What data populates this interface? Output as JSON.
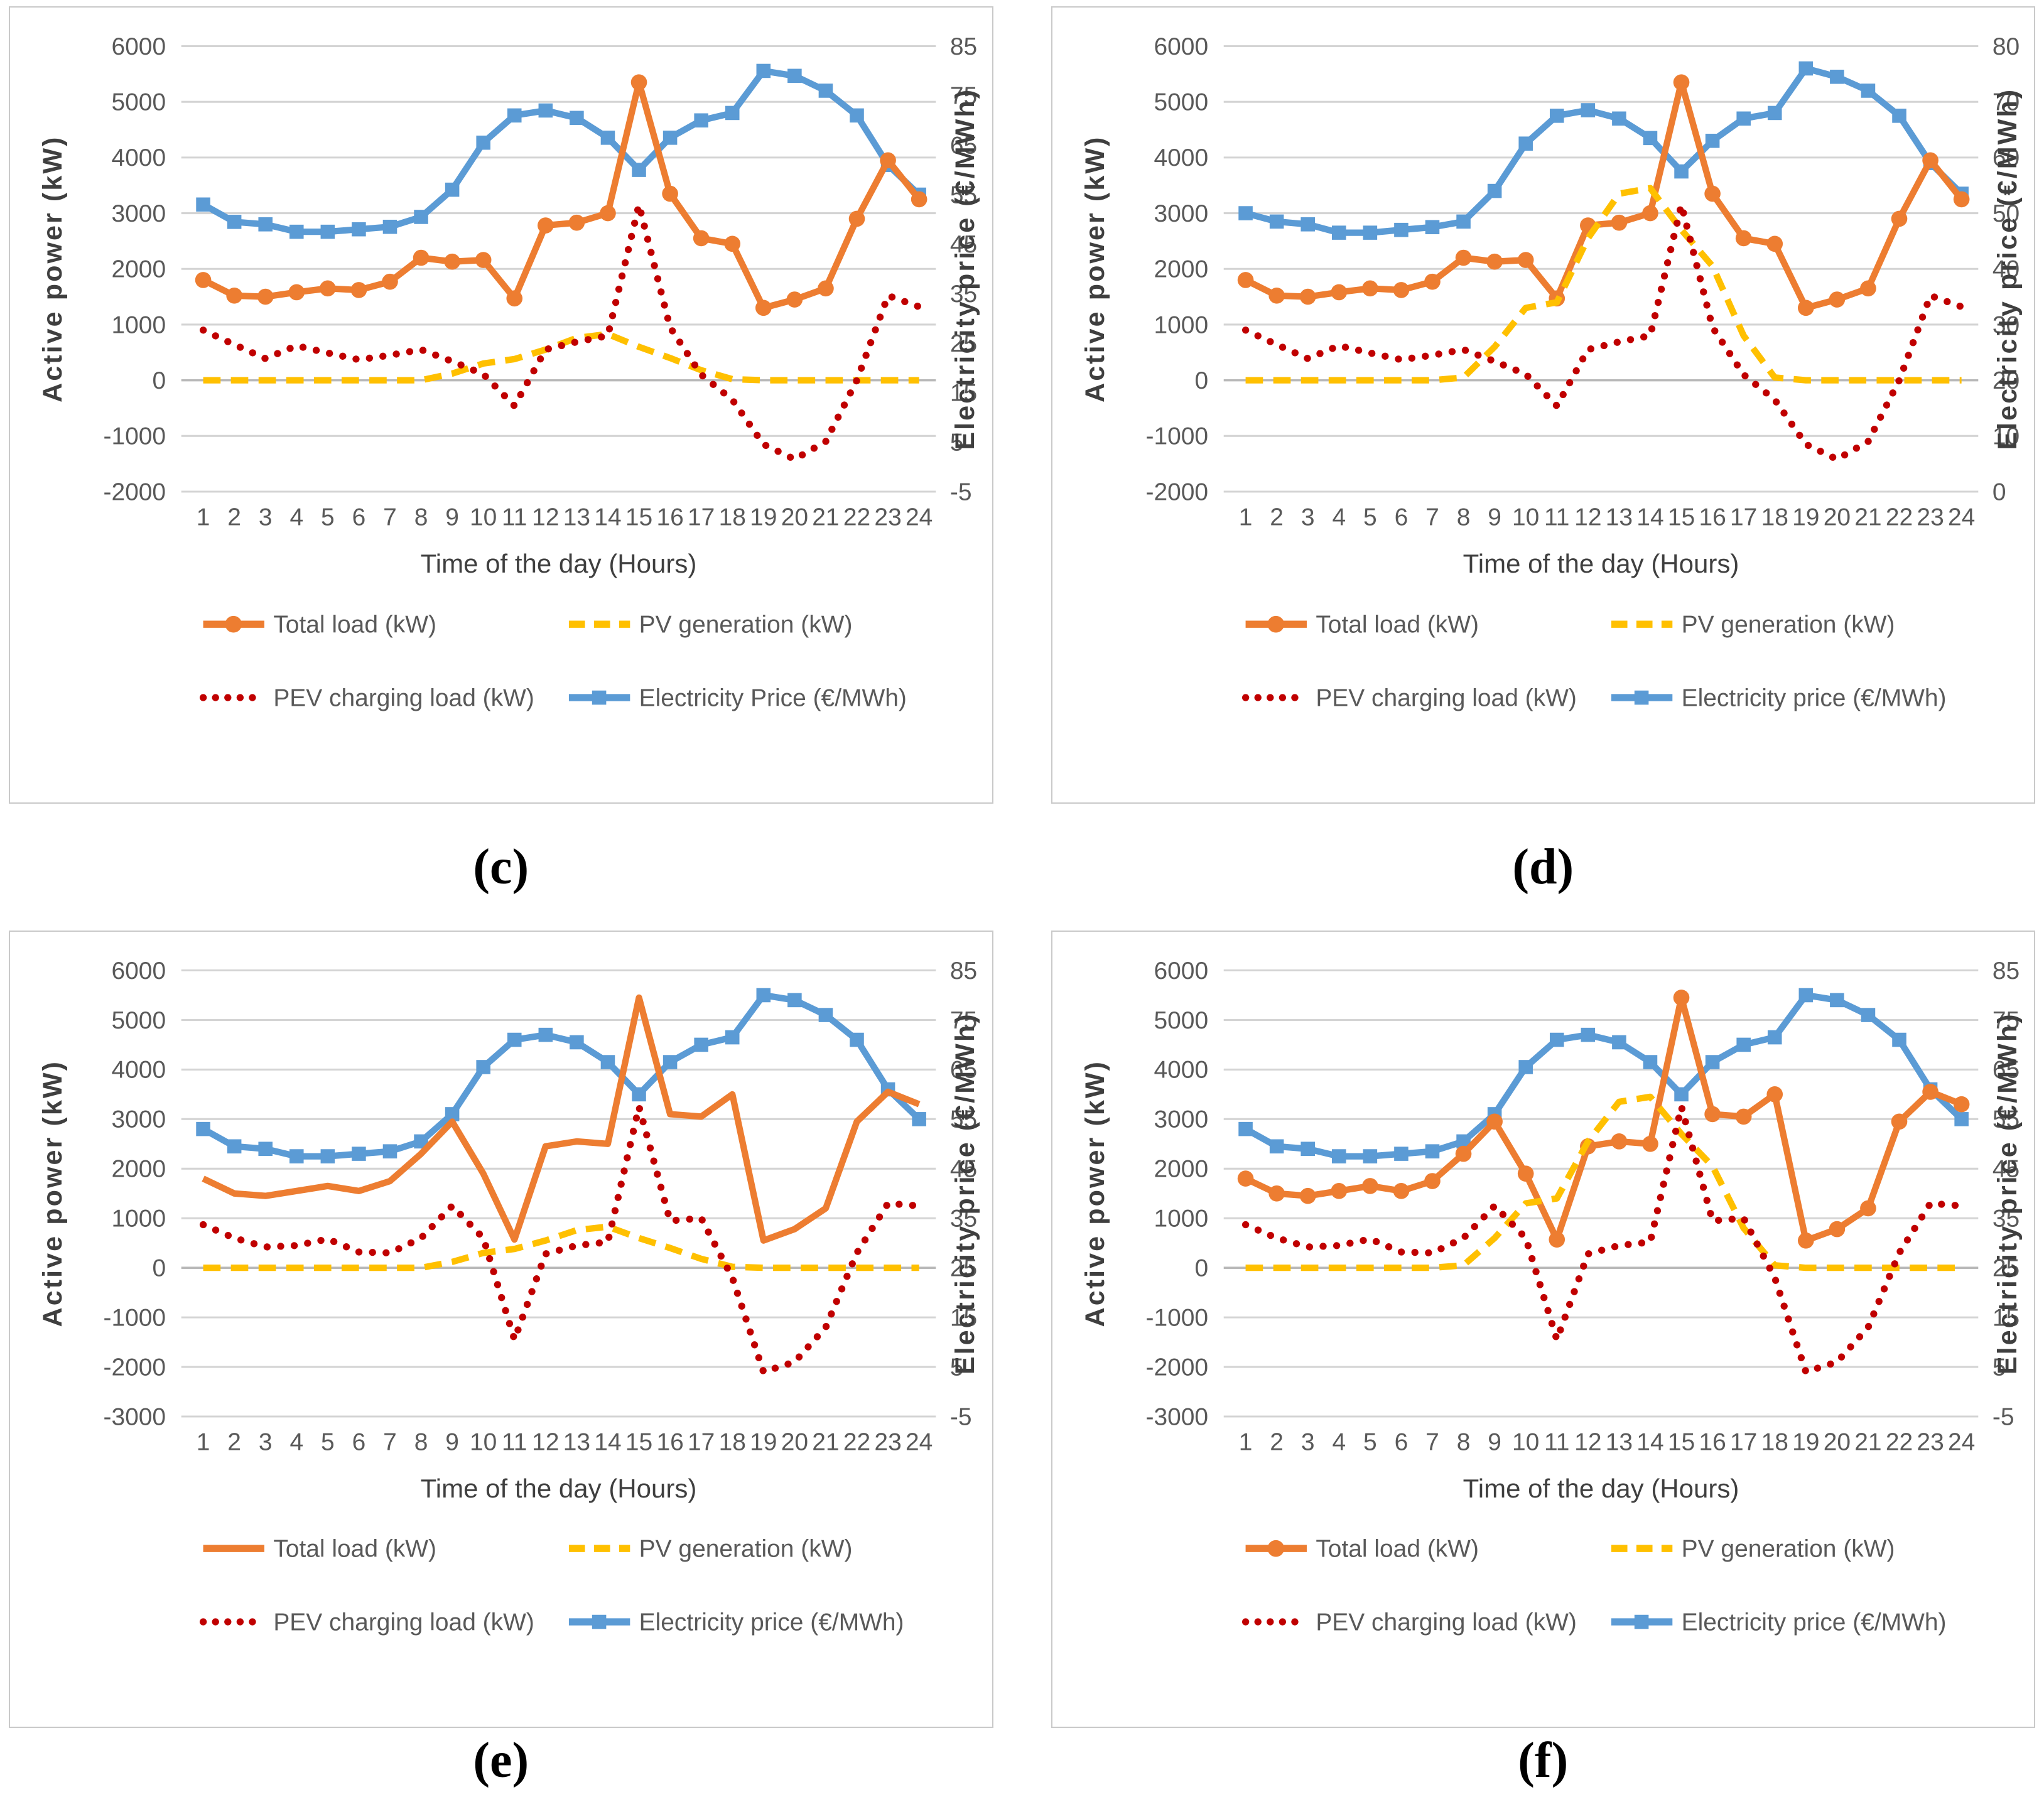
{
  "figure": {
    "type": "multi-panel-line-chart",
    "panel_count": 4
  },
  "chart_data": [
    {
      "id": "c",
      "caption": "(c)",
      "type": "line",
      "x": [
        1,
        2,
        3,
        4,
        5,
        6,
        7,
        8,
        9,
        10,
        11,
        12,
        13,
        14,
        15,
        16,
        17,
        18,
        19,
        20,
        21,
        22,
        23,
        24
      ],
      "axes": {
        "x_title": "Time of the day (Hours)",
        "y_left_title": "Active power (kW)",
        "y_right_title": "Electricity price (€/MWh)",
        "x_ticks": [
          1,
          2,
          3,
          4,
          5,
          6,
          7,
          8,
          9,
          10,
          11,
          12,
          13,
          14,
          15,
          16,
          17,
          18,
          19,
          20,
          21,
          22,
          23,
          24
        ],
        "y_left_min": -2000,
        "y_left_max": 6000,
        "y_left_step": 1000,
        "y_right_min": -5,
        "y_right_max": 85,
        "y_right_step": 10,
        "grid": true
      },
      "series": [
        {
          "key": "total-load",
          "name": "Total load (kW)",
          "color": "#ED7D31",
          "axis": "left",
          "dash": "solid",
          "marker": "circle",
          "values": [
            1800,
            1520,
            1500,
            1580,
            1650,
            1620,
            1770,
            2200,
            2130,
            2160,
            1470,
            2780,
            2830,
            3000,
            5350,
            3350,
            2550,
            2450,
            1300,
            1450,
            1650,
            2900,
            3950,
            3250
          ]
        },
        {
          "key": "pv-generation",
          "name": "PV generation (kW)",
          "color": "#FFC000",
          "axis": "left",
          "dash": "dashed",
          "marker": "none",
          "values": [
            0,
            0,
            0,
            0,
            0,
            0,
            0,
            0,
            120,
            300,
            380,
            550,
            760,
            830,
            600,
            400,
            180,
            20,
            0,
            0,
            0,
            0,
            0,
            0
          ]
        },
        {
          "key": "pev-charging-load",
          "name": "PEV charging load (kW)",
          "color": "#C00000",
          "axis": "left",
          "dash": "dotted",
          "marker": "none",
          "values": [
            900,
            640,
            390,
            620,
            490,
            370,
            450,
            550,
            340,
            110,
            -460,
            550,
            690,
            800,
            3150,
            950,
            100,
            -350,
            -1150,
            -1420,
            -1100,
            0,
            1520,
            1320
          ]
        },
        {
          "key": "electricity-price",
          "name": "Electricity Price (€/MWh)",
          "color": "#5B9BD5",
          "axis": "right",
          "dash": "solid",
          "marker": "square",
          "values": [
            53,
            49.5,
            49,
            47.5,
            47.5,
            48,
            48.5,
            50.5,
            56,
            65.5,
            71,
            72,
            70.5,
            66.5,
            60,
            66.5,
            70,
            71.5,
            80,
            79,
            76,
            71,
            61,
            55
          ]
        }
      ],
      "legend_position": "bottom"
    },
    {
      "id": "d",
      "caption": "(d)",
      "type": "line",
      "x": [
        1,
        2,
        3,
        4,
        5,
        6,
        7,
        8,
        9,
        10,
        11,
        12,
        13,
        14,
        15,
        16,
        17,
        18,
        19,
        20,
        21,
        22,
        23,
        24
      ],
      "axes": {
        "x_title": "Time of the day (Hours)",
        "y_left_title": "Active power (kW)",
        "y_right_title": "Electricity price (€/MWh)",
        "x_ticks": [
          1,
          2,
          3,
          4,
          5,
          6,
          7,
          8,
          9,
          10,
          11,
          12,
          13,
          14,
          15,
          16,
          17,
          18,
          19,
          20,
          21,
          22,
          23,
          24
        ],
        "y_left_min": -2000,
        "y_left_max": 6000,
        "y_left_step": 1000,
        "y_right_min": 0,
        "y_right_max": 80,
        "y_right_step": 10,
        "grid": true
      },
      "series": [
        {
          "key": "total-load",
          "name": "Total load (kW)",
          "color": "#ED7D31",
          "axis": "left",
          "dash": "solid",
          "marker": "circle",
          "values": [
            1800,
            1520,
            1500,
            1580,
            1650,
            1620,
            1770,
            2200,
            2130,
            2160,
            1470,
            2780,
            2830,
            3000,
            5350,
            3350,
            2550,
            2450,
            1300,
            1450,
            1650,
            2900,
            3950,
            3250
          ]
        },
        {
          "key": "pv-generation",
          "name": "PV generation (kW)",
          "color": "#FFC000",
          "axis": "left",
          "dash": "dashed",
          "marker": "none",
          "values": [
            0,
            0,
            0,
            0,
            0,
            0,
            0,
            50,
            600,
            1300,
            1400,
            2550,
            3350,
            3450,
            2700,
            2050,
            800,
            50,
            0,
            0,
            0,
            0,
            0,
            0
          ]
        },
        {
          "key": "pev-charging-load",
          "name": "PEV charging load (kW)",
          "color": "#C00000",
          "axis": "left",
          "dash": "dotted",
          "marker": "none",
          "values": [
            900,
            640,
            390,
            620,
            490,
            370,
            450,
            550,
            340,
            110,
            -460,
            550,
            690,
            800,
            3150,
            950,
            100,
            -350,
            -1150,
            -1420,
            -1100,
            0,
            1520,
            1320
          ]
        },
        {
          "key": "electricity-price",
          "name": "Electricity price (€/MWh)",
          "color": "#5B9BD5",
          "axis": "right",
          "dash": "solid",
          "marker": "square",
          "values": [
            50,
            48.5,
            48,
            46.5,
            46.5,
            47,
            47.5,
            48.5,
            54,
            62.5,
            67.5,
            68.5,
            67,
            63.5,
            57.5,
            63,
            67,
            68,
            76,
            74.5,
            72,
            67.5,
            59,
            53.5
          ]
        }
      ],
      "legend_position": "bottom"
    },
    {
      "id": "e",
      "caption": "(e)",
      "type": "line",
      "x": [
        1,
        2,
        3,
        4,
        5,
        6,
        7,
        8,
        9,
        10,
        11,
        12,
        13,
        14,
        15,
        16,
        17,
        18,
        19,
        20,
        21,
        22,
        23,
        24
      ],
      "axes": {
        "x_title": "Time of the day (Hours)",
        "y_left_title": "Active power (kW)",
        "y_right_title": "Electricity price (€/MWh)",
        "x_ticks": [
          1,
          2,
          3,
          4,
          5,
          6,
          7,
          8,
          9,
          10,
          11,
          12,
          13,
          14,
          15,
          16,
          17,
          18,
          19,
          20,
          21,
          22,
          23,
          24
        ],
        "y_left_min": -3000,
        "y_left_max": 6000,
        "y_left_step": 1000,
        "y_right_min": -5,
        "y_right_max": 85,
        "y_right_step": 10,
        "grid": true
      },
      "series": [
        {
          "key": "total-load",
          "name": "Total load (kW)",
          "color": "#ED7D31",
          "axis": "left",
          "dash": "solid",
          "marker": "none",
          "values": [
            1800,
            1500,
            1450,
            1550,
            1650,
            1550,
            1750,
            2300,
            2950,
            1900,
            570,
            2450,
            2550,
            2500,
            5450,
            3100,
            3050,
            3500,
            550,
            780,
            1200,
            2950,
            3550,
            3300
          ]
        },
        {
          "key": "pv-generation",
          "name": "PV generation (kW)",
          "color": "#FFC000",
          "axis": "left",
          "dash": "dashed",
          "marker": "none",
          "values": [
            0,
            0,
            0,
            0,
            0,
            0,
            0,
            0,
            120,
            300,
            380,
            550,
            760,
            830,
            600,
            400,
            180,
            20,
            0,
            0,
            0,
            0,
            0,
            0
          ]
        },
        {
          "key": "pev-charging-load",
          "name": "PEV charging load (kW)",
          "color": "#C00000",
          "axis": "left",
          "dash": "dotted",
          "marker": "none",
          "values": [
            870,
            600,
            420,
            450,
            580,
            320,
            300,
            600,
            1250,
            600,
            -1450,
            280,
            450,
            520,
            3250,
            950,
            1000,
            -200,
            -2100,
            -1900,
            -1200,
            300,
            1300,
            1250
          ]
        },
        {
          "key": "electricity-price",
          "name": "Electricity price (€/MWh)",
          "color": "#5B9BD5",
          "axis": "right",
          "dash": "solid",
          "marker": "square",
          "values": [
            53,
            49.5,
            49,
            47.5,
            47.5,
            48,
            48.5,
            50.5,
            56,
            65.5,
            71,
            72,
            70.5,
            66.5,
            60,
            66.5,
            70,
            71.5,
            80,
            79,
            76,
            71,
            61,
            55
          ]
        }
      ],
      "legend_position": "bottom"
    },
    {
      "id": "f",
      "caption": "(f)",
      "type": "line",
      "x": [
        1,
        2,
        3,
        4,
        5,
        6,
        7,
        8,
        9,
        10,
        11,
        12,
        13,
        14,
        15,
        16,
        17,
        18,
        19,
        20,
        21,
        22,
        23,
        24
      ],
      "axes": {
        "x_title": "Time of the day (Hours)",
        "y_left_title": "Active power (kW)",
        "y_right_title": "Electricity price (€/MWh)",
        "x_ticks": [
          1,
          2,
          3,
          4,
          5,
          6,
          7,
          8,
          9,
          10,
          11,
          12,
          13,
          14,
          15,
          16,
          17,
          18,
          19,
          20,
          21,
          22,
          23,
          24
        ],
        "y_left_min": -3000,
        "y_left_max": 6000,
        "y_left_step": 1000,
        "y_right_min": -5,
        "y_right_max": 85,
        "y_right_step": 10,
        "grid": true
      },
      "series": [
        {
          "key": "total-load",
          "name": "Total load (kW)",
          "color": "#ED7D31",
          "axis": "left",
          "dash": "solid",
          "marker": "circle",
          "values": [
            1800,
            1500,
            1450,
            1550,
            1650,
            1550,
            1750,
            2300,
            2950,
            1900,
            570,
            2450,
            2550,
            2500,
            5450,
            3100,
            3050,
            3500,
            550,
            780,
            1200,
            2950,
            3550,
            3300
          ]
        },
        {
          "key": "pv-generation",
          "name": "PV generation (kW)",
          "color": "#FFC000",
          "axis": "left",
          "dash": "dashed",
          "marker": "none",
          "values": [
            0,
            0,
            0,
            0,
            0,
            0,
            0,
            50,
            600,
            1300,
            1400,
            2550,
            3350,
            3450,
            2700,
            2050,
            800,
            50,
            0,
            0,
            0,
            0,
            0,
            0
          ]
        },
        {
          "key": "pev-charging-load",
          "name": "PEV charging load (kW)",
          "color": "#C00000",
          "axis": "left",
          "dash": "dotted",
          "marker": "none",
          "values": [
            870,
            600,
            420,
            450,
            580,
            320,
            300,
            600,
            1250,
            600,
            -1450,
            280,
            450,
            520,
            3250,
            950,
            1000,
            -200,
            -2100,
            -1900,
            -1200,
            300,
            1300,
            1250
          ]
        },
        {
          "key": "electricity-price",
          "name": "Electricity price (€/MWh)",
          "color": "#5B9BD5",
          "axis": "right",
          "dash": "solid",
          "marker": "square",
          "values": [
            53,
            49.5,
            49,
            47.5,
            47.5,
            48,
            48.5,
            50.5,
            56,
            65.5,
            71,
            72,
            70.5,
            66.5,
            60,
            66.5,
            70,
            71.5,
            80,
            79,
            76,
            71,
            61,
            55
          ]
        }
      ],
      "legend_position": "bottom"
    }
  ],
  "style": {
    "grid_color": "#d4d4d4",
    "zero_line_color": "#b9b9b9",
    "tick_text_color": "#595959",
    "axis_title_color": "#3f3f3f",
    "series_colors": {
      "total_load": "#ED7D31",
      "pv_generation": "#FFC000",
      "pev_charging_load": "#C00000",
      "electricity_price": "#5B9BD5"
    }
  }
}
